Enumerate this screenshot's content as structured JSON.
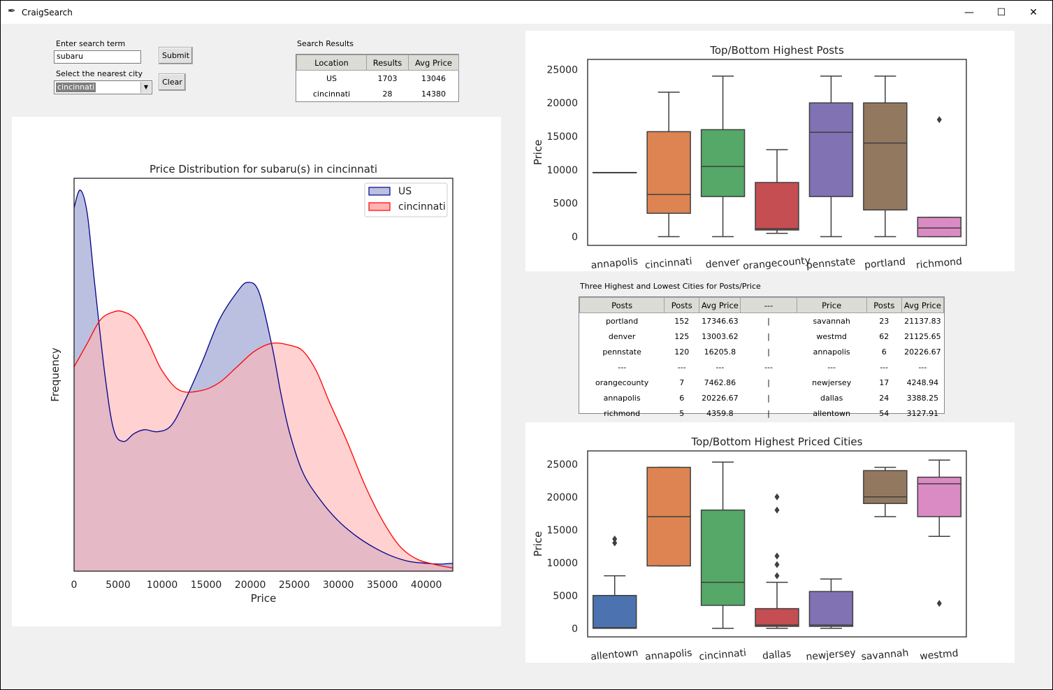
{
  "window": {
    "title": "CraigSearch",
    "icon": "feather-icon",
    "minimize": "—",
    "maximize": "☐",
    "close": "✕"
  },
  "search": {
    "term_label": "Enter search term",
    "term_value": "subaru",
    "city_label": "Select the nearest city",
    "city_value": "cincinnati",
    "submit_label": "Submit",
    "clear_label": "Clear"
  },
  "results": {
    "title": "Search Results",
    "headers": [
      "Location",
      "Results",
      "Avg Price"
    ],
    "rows": [
      [
        "US",
        "1703",
        "13046"
      ],
      [
        "cincinnati",
        "28",
        "14380"
      ]
    ]
  },
  "cities_table": {
    "title": "Three Highest and Lowest Cities for Posts/Price",
    "headers": [
      "Posts",
      "Posts",
      "Avg Price",
      "---",
      "Price",
      "Posts",
      "Avg Price"
    ],
    "rows": [
      [
        "portland",
        "152",
        "17346.63",
        "|",
        "savannah",
        "23",
        "21137.83"
      ],
      [
        "denver",
        "125",
        "13003.62",
        "|",
        "westmd",
        "62",
        "21125.65"
      ],
      [
        "pennstate",
        "120",
        "16205.8",
        "|",
        "annapolis",
        "6",
        "20226.67"
      ],
      [
        "---",
        "---",
        "---",
        "---",
        "---",
        "---",
        "---"
      ],
      [
        "orangecounty",
        "7",
        "7462.86",
        "|",
        "newjersey",
        "17",
        "4248.94"
      ],
      [
        "annapolis",
        "6",
        "20226.67",
        "|",
        "dallas",
        "24",
        "3388.25"
      ],
      [
        "richmond",
        "5",
        "4359.8",
        "|",
        "allentown",
        "54",
        "3127.91"
      ]
    ]
  },
  "chart_data": [
    {
      "type": "area",
      "title": "Price Distribution for subaru(s) in cincinnati",
      "xlabel": "Price",
      "ylabel": "Frequency",
      "xlim": [
        0,
        43000
      ],
      "xticks": [
        0,
        5000,
        10000,
        15000,
        20000,
        25000,
        30000,
        35000,
        40000
      ],
      "xtick_labels": [
        "0",
        "5000",
        "10000",
        "15000",
        "20000",
        "25000",
        "30000",
        "35000",
        "40000"
      ],
      "legend_position": "top-right",
      "series": [
        {
          "name": "US",
          "color": "#00008b",
          "fill": "#bcc0e0",
          "x": [
            0,
            700,
            1500,
            2300,
            3500,
            4500,
            5600,
            6800,
            8000,
            9500,
            11000,
            12500,
            14500,
            16500,
            18500,
            19700,
            21000,
            22500,
            23500,
            24500,
            26000,
            28000,
            30000,
            32000,
            34000,
            36000,
            38000,
            40000,
            41500,
            43000
          ],
          "y": [
            0.925,
            0.97,
            0.91,
            0.74,
            0.5,
            0.36,
            0.33,
            0.35,
            0.36,
            0.355,
            0.37,
            0.43,
            0.53,
            0.64,
            0.71,
            0.735,
            0.71,
            0.57,
            0.45,
            0.35,
            0.25,
            0.18,
            0.128,
            0.09,
            0.061,
            0.039,
            0.025,
            0.02,
            0.018,
            0.02
          ]
        },
        {
          "name": "cincinnati",
          "color": "#ff0000",
          "fill": "#ffb4b4",
          "x": [
            0,
            1500,
            3000,
            4500,
            5600,
            7000,
            8500,
            10000,
            12000,
            14500,
            16500,
            18500,
            20500,
            22500,
            24500,
            26000,
            27500,
            29000,
            31000,
            33000,
            35000,
            37000,
            39000,
            41000,
            42000,
            43000
          ],
          "y": [
            0.52,
            0.58,
            0.64,
            0.66,
            0.66,
            0.64,
            0.58,
            0.51,
            0.46,
            0.46,
            0.48,
            0.52,
            0.56,
            0.58,
            0.575,
            0.56,
            0.51,
            0.43,
            0.33,
            0.22,
            0.13,
            0.063,
            0.03,
            0.017,
            0.012,
            0.008
          ]
        }
      ]
    },
    {
      "type": "box",
      "title": "Top/Bottom Highest Posts",
      "ylabel": "Price",
      "xlabel": "",
      "ylim": [
        -1300,
        26500
      ],
      "yticks": [
        0,
        5000,
        10000,
        15000,
        20000,
        25000
      ],
      "categories": [
        "annapolis",
        "cincinnati",
        "denver",
        "orangecounty",
        "pennstate",
        "portland",
        "richmond"
      ],
      "boxes": [
        {
          "whislo": 9600,
          "q1": 9600,
          "med": 9600,
          "q3": 9600,
          "whishi": 9600,
          "fliers": [],
          "color": "#4c72b0"
        },
        {
          "whislo": 0,
          "q1": 3500,
          "med": 6300,
          "q3": 15700,
          "whishi": 21600,
          "fliers": [],
          "color": "#dd8452"
        },
        {
          "whislo": 0,
          "q1": 6000,
          "med": 10500,
          "q3": 16000,
          "whishi": 24000,
          "fliers": [],
          "color": "#55a868"
        },
        {
          "whislo": 500,
          "q1": 1000,
          "med": 1200,
          "q3": 8100,
          "whishi": 13000,
          "fliers": [],
          "color": "#c44e52"
        },
        {
          "whislo": 0,
          "q1": 6000,
          "med": 15600,
          "q3": 20000,
          "whishi": 24000,
          "fliers": [],
          "color": "#8172b3"
        },
        {
          "whislo": 0,
          "q1": 4000,
          "med": 14000,
          "q3": 20000,
          "whishi": 24000,
          "fliers": [],
          "color": "#937860"
        },
        {
          "whislo": 0,
          "q1": 0,
          "med": 1300,
          "q3": 2900,
          "whishi": 2900,
          "fliers": [
            17500
          ],
          "color": "#da8bc3"
        }
      ]
    },
    {
      "type": "box",
      "title": "Top/Bottom Highest Priced Cities",
      "ylabel": "Price",
      "xlabel": "",
      "ylim": [
        -1300,
        27000
      ],
      "yticks": [
        0,
        5000,
        10000,
        15000,
        20000,
        25000
      ],
      "categories": [
        "allentown",
        "annapolis",
        "cincinnati",
        "dallas",
        "newjersey",
        "savannah",
        "westmd"
      ],
      "boxes": [
        {
          "whislo": 0,
          "q1": 0,
          "med": 100,
          "q3": 5000,
          "whishi": 8000,
          "fliers": [
            13000,
            13600
          ],
          "color": "#4c72b0"
        },
        {
          "whislo": 9500,
          "q1": 9500,
          "med": 17000,
          "q3": 24500,
          "whishi": 24500,
          "fliers": [],
          "color": "#dd8452"
        },
        {
          "whislo": 0,
          "q1": 3500,
          "med": 7000,
          "q3": 18000,
          "whishi": 25300,
          "fliers": [],
          "color": "#55a868"
        },
        {
          "whislo": 0,
          "q1": 300,
          "med": 500,
          "q3": 3000,
          "whishi": 7000,
          "fliers": [
            8000,
            9700,
            11000,
            18000,
            20000
          ],
          "color": "#c44e52"
        },
        {
          "whislo": 0,
          "q1": 300,
          "med": 500,
          "q3": 5600,
          "whishi": 7500,
          "fliers": [],
          "color": "#8172b3"
        },
        {
          "whislo": 17000,
          "q1": 19000,
          "med": 20000,
          "q3": 24000,
          "whishi": 24500,
          "fliers": [],
          "color": "#937860"
        },
        {
          "whislo": 14000,
          "q1": 17000,
          "med": 22000,
          "q3": 23000,
          "whishi": 25600,
          "fliers": [
            3800
          ],
          "color": "#da8bc3"
        }
      ]
    }
  ]
}
